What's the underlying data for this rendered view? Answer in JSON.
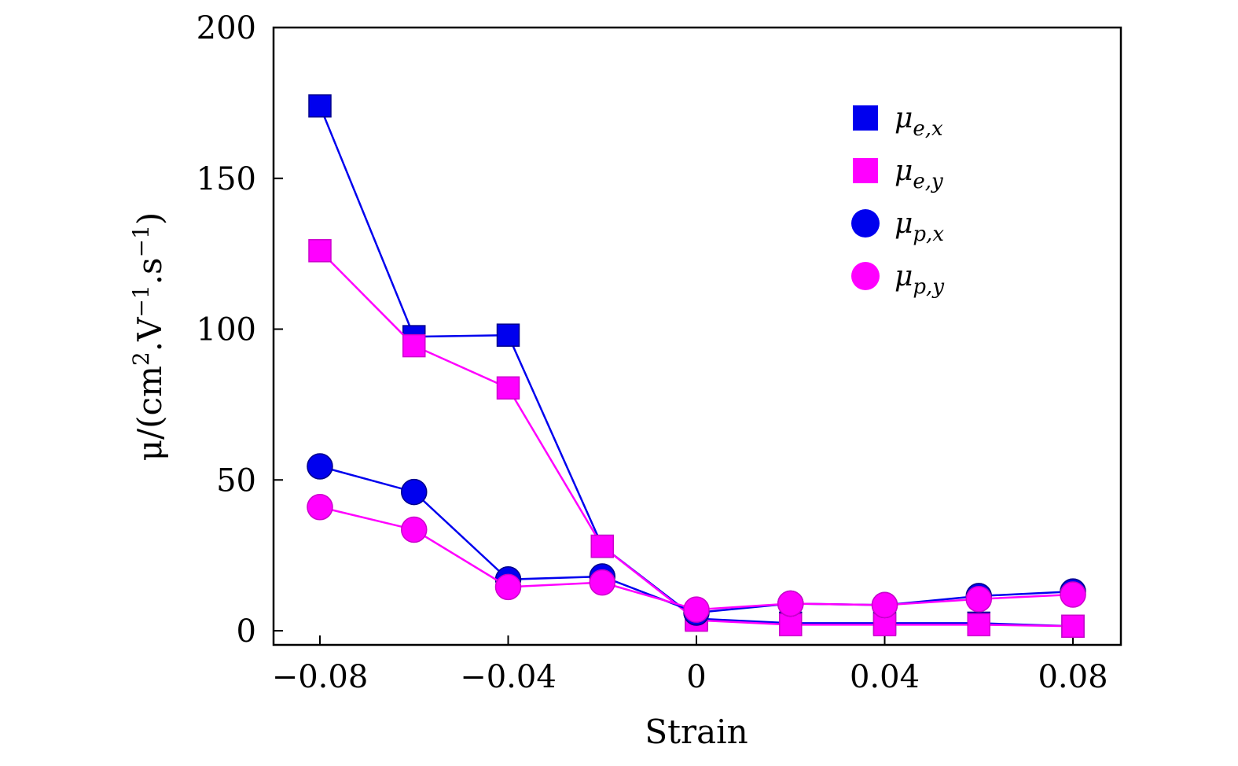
{
  "chart_data": {
    "type": "line",
    "xlabel": "Strain",
    "ylabel": "μ/(cm2.V−1.s−1)",
    "ylabel_parts": {
      "prefix": "μ/(cm",
      "sup1": "2",
      "mid": ".V",
      "sup2": "−1",
      "mid2": ".s",
      "sup3": "−1",
      "suffix": ")"
    },
    "xlim": [
      -0.09,
      0.09
    ],
    "ylim": [
      -5,
      200
    ],
    "xticks": [
      {
        "value": -0.08,
        "label": "−0.08"
      },
      {
        "value": -0.04,
        "label": "−0.04"
      },
      {
        "value": 0,
        "label": "0"
      },
      {
        "value": 0.04,
        "label": "0.04"
      },
      {
        "value": 0.08,
        "label": "0.08"
      }
    ],
    "yticks": [
      {
        "value": 0,
        "label": "0"
      },
      {
        "value": 50,
        "label": "50"
      },
      {
        "value": 100,
        "label": "100"
      },
      {
        "value": 150,
        "label": "150"
      },
      {
        "value": 200,
        "label": "200"
      }
    ],
    "x": [
      -0.08,
      -0.06,
      -0.04,
      -0.02,
      0,
      0.02,
      0.04,
      0.06,
      0.08
    ],
    "legend_position": "top-right",
    "series": [
      {
        "name": "μe,x",
        "label_main": "μ",
        "label_sub": "e,x",
        "marker": "square",
        "color": "#0000ee",
        "values": [
          174,
          97.5,
          98,
          28,
          4,
          2.5,
          2.5,
          2.5,
          1.5
        ]
      },
      {
        "name": "μe,y",
        "label_main": "μ",
        "label_sub": "e,y",
        "marker": "square",
        "color": "#ff00ff",
        "values": [
          126,
          94.5,
          80.5,
          28,
          3.5,
          2,
          2,
          2,
          1.5
        ]
      },
      {
        "name": "μp,x",
        "label_main": "μ",
        "label_sub": "p,x",
        "marker": "circle",
        "color": "#0000ee",
        "values": [
          54.5,
          46,
          17,
          18,
          6,
          9,
          8.5,
          11.5,
          13
        ]
      },
      {
        "name": "μp,y",
        "label_main": "μ",
        "label_sub": "p,y",
        "marker": "circle",
        "color": "#ff00ff",
        "values": [
          41,
          33.5,
          14.5,
          16,
          7,
          9,
          8.5,
          10.5,
          12
        ]
      }
    ]
  }
}
